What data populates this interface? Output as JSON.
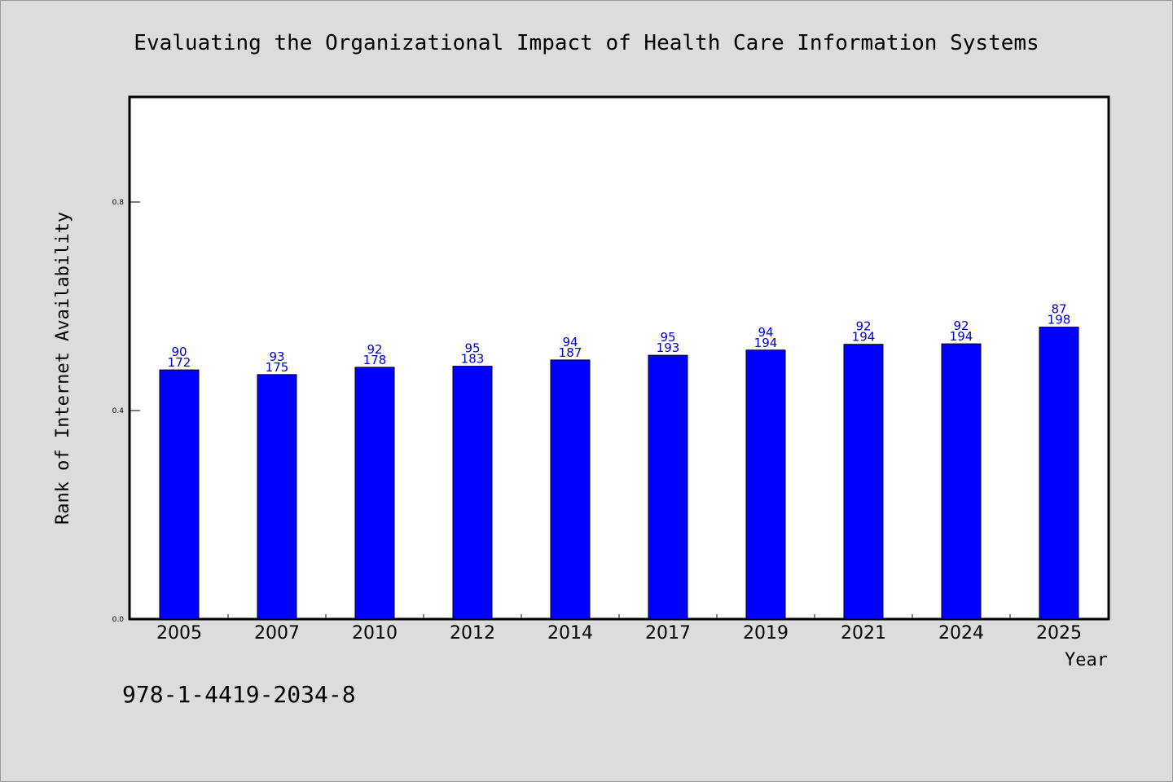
{
  "chart_data": {
    "type": "bar",
    "title": "Evaluating the Organizational Impact of Health Care Information Systems",
    "xlabel": "Year",
    "ylabel": "Rank of Internet Availability",
    "categories": [
      "2005",
      "2007",
      "2010",
      "2012",
      "2014",
      "2017",
      "2019",
      "2021",
      "2024",
      "2025"
    ],
    "values": [
      0.478,
      0.469,
      0.483,
      0.485,
      0.497,
      0.506,
      0.516,
      0.527,
      0.528,
      0.56
    ],
    "labels_top": [
      "90",
      "93",
      "92",
      "95",
      "94",
      "95",
      "94",
      "92",
      "92",
      "87"
    ],
    "labels_bottom": [
      "172",
      "175",
      "178",
      "183",
      "187",
      "193",
      "194",
      "194",
      "194",
      "198"
    ],
    "yticks": [
      "0.0",
      "0.4",
      "0.8"
    ],
    "ylim": [
      0,
      1.0
    ],
    "grid": false,
    "bar_color": "#0000ff",
    "label_color": "#0000cc"
  },
  "footer": {
    "isbn": "978-1-4419-2034-8"
  }
}
